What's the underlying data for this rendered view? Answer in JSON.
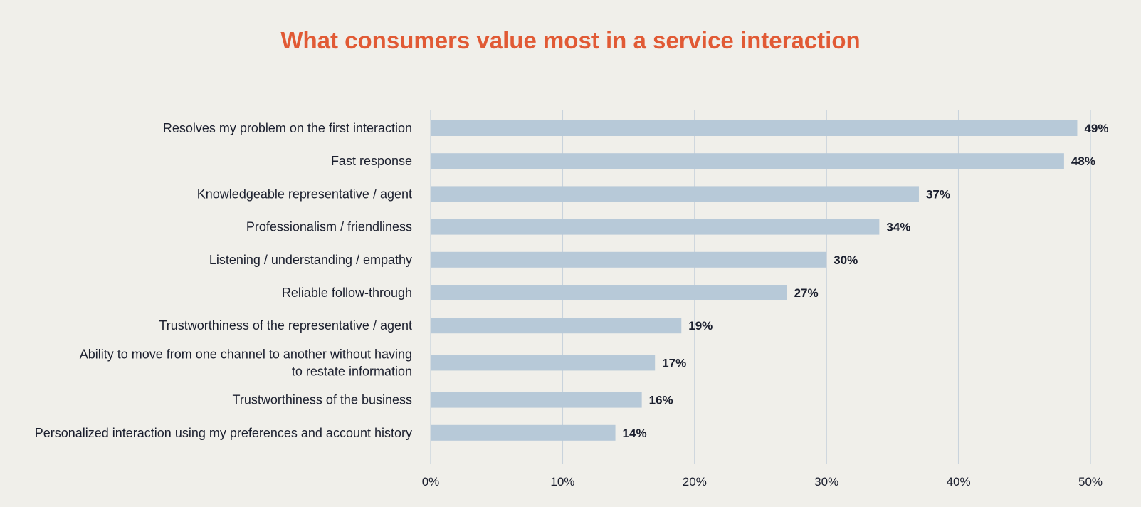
{
  "chart_data": {
    "type": "bar",
    "orientation": "horizontal",
    "title": "What consumers value most in a service interaction",
    "categories": [
      [
        "Resolves my problem on the first interaction"
      ],
      [
        "Fast response"
      ],
      [
        "Knowledgeable representative / agent"
      ],
      [
        "Professionalism / friendliness"
      ],
      [
        "Listening / understanding / empathy"
      ],
      [
        "Reliable follow-through"
      ],
      [
        "Trustworthiness of the representative / agent"
      ],
      [
        "Ability to move from one channel to another without having",
        "to restate information"
      ],
      [
        "Trustworthiness of the business"
      ],
      [
        "Personalized interaction using my preferences and account history"
      ]
    ],
    "values": [
      49,
      48,
      37,
      34,
      30,
      27,
      19,
      17,
      16,
      14
    ],
    "value_labels": [
      "49%",
      "48%",
      "37%",
      "34%",
      "30%",
      "27%",
      "19%",
      "17%",
      "16%",
      "14%"
    ],
    "xlim": [
      0,
      50
    ],
    "xticks": [
      0,
      10,
      20,
      30,
      40,
      50
    ],
    "xtick_labels": [
      "0%",
      "10%",
      "20%",
      "30%",
      "40%",
      "50%"
    ],
    "grid": true,
    "legend": false,
    "colors": {
      "bar": "#b7c9d8",
      "grid": "#c9d3dc",
      "title": "#e15a35",
      "text": "#1b1f2e",
      "background": "#f0efea"
    }
  }
}
